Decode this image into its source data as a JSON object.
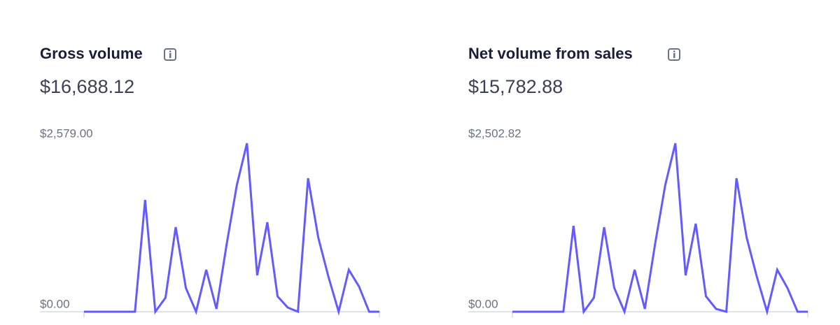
{
  "chart_data": [
    {
      "type": "line",
      "title": "Gross volume",
      "subtitle": "$16,688.12",
      "ylim": [
        0,
        2579
      ],
      "yticks": [
        {
          "value": 0,
          "label": "$0.00"
        },
        {
          "value": 2579,
          "label": "$2,579.00"
        }
      ],
      "series": [
        {
          "color": "#635bff",
          "values": [
            0,
            0,
            0,
            0,
            0,
            0,
            1712,
            0,
            214,
            1295,
            364,
            0,
            642,
            43,
            1027,
            1937,
            2579,
            556,
            1370,
            235,
            64,
            0,
            2044,
            1134,
            535,
            0,
            642,
            385,
            0,
            0
          ]
        }
      ]
    },
    {
      "type": "line",
      "title": "Net volume from sales",
      "subtitle": "$15,782.88",
      "ylim": [
        0,
        2502.82
      ],
      "yticks": [
        {
          "value": 0,
          "label": "$0.00"
        },
        {
          "value": 2502.82,
          "label": "$2,502.82"
        }
      ],
      "series": [
        {
          "color": "#635bff",
          "values": [
            0,
            0,
            0,
            0,
            0,
            0,
            1277,
            0,
            208,
            1256,
            353,
            0,
            623,
            42,
            997,
            1880,
            2502.82,
            540,
            1309,
            228,
            42,
            0,
            1984,
            1101,
            519,
            0,
            623,
            353,
            0,
            0
          ]
        }
      ]
    }
  ]
}
